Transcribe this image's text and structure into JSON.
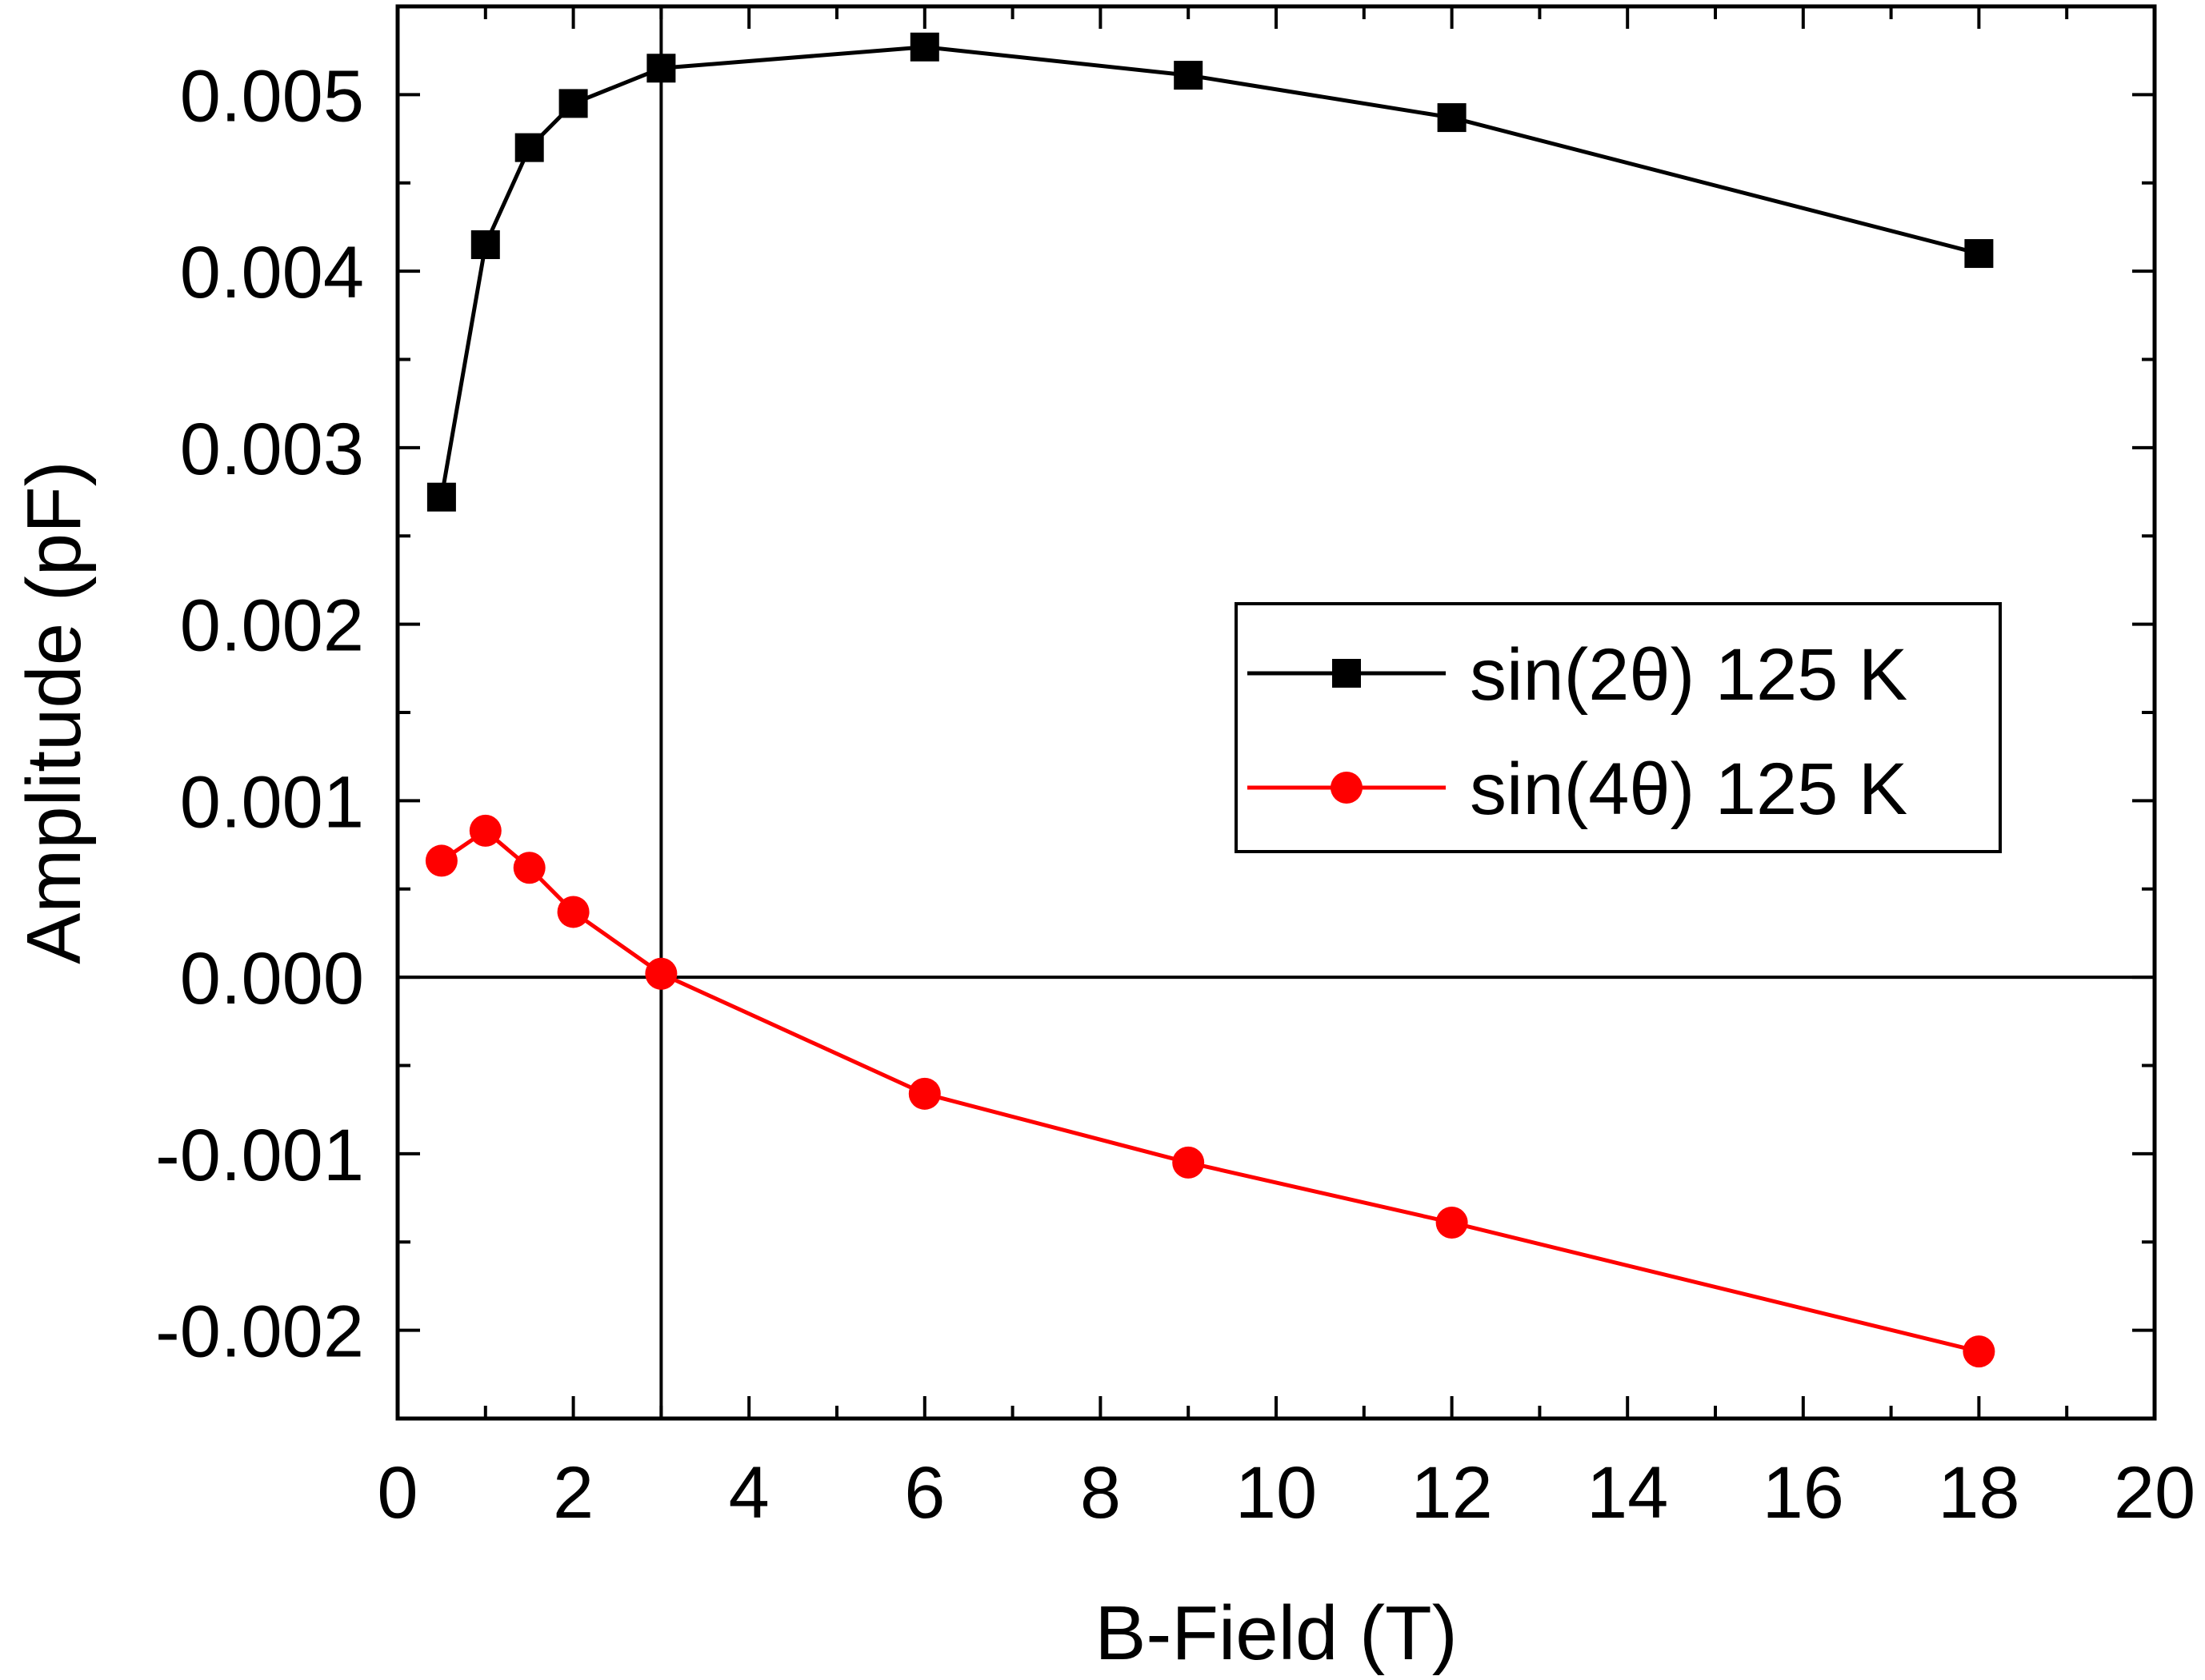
{
  "chart_data": {
    "type": "line",
    "title": "",
    "xlabel": "B-Field (T)",
    "ylabel": "Amplitude (pF)",
    "xlim": [
      0,
      20
    ],
    "ylim": [
      -0.0025,
      0.0055
    ],
    "x_ticks": [
      0,
      2,
      4,
      6,
      8,
      10,
      12,
      14,
      16,
      18,
      20
    ],
    "x_tick_labels": [
      "0",
      "2",
      "4",
      "6",
      "8",
      "10",
      "12",
      "14",
      "16",
      "18",
      "20"
    ],
    "y_ticks": [
      -0.002,
      -0.001,
      0.0,
      0.001,
      0.002,
      0.003,
      0.004,
      0.005
    ],
    "y_tick_labels": [
      "-0.002",
      "-0.001",
      "0.000",
      "0.001",
      "0.002",
      "0.003",
      "0.004",
      "0.005"
    ],
    "reference_lines": {
      "vertical_x": 3,
      "horizontal_y": 0
    },
    "grid": false,
    "legend_position": "right",
    "series": [
      {
        "name": "sin(2θ) 125 K",
        "color": "#000000",
        "marker": "square",
        "x": [
          0.5,
          1,
          1.5,
          2,
          3,
          6,
          9,
          12,
          18
        ],
        "values": [
          0.00272,
          0.00415,
          0.0047,
          0.00495,
          0.00515,
          0.00527,
          0.00511,
          0.00487,
          0.0041
        ]
      },
      {
        "name": "sin(4θ) 125 K",
        "color": "#ff0000",
        "marker": "circle",
        "x": [
          0.5,
          1,
          1.5,
          2,
          3,
          6,
          9,
          12,
          18
        ],
        "values": [
          0.00066,
          0.00083,
          0.00062,
          0.00037,
          2e-05,
          -0.00066,
          -0.00105,
          -0.00139,
          -0.00212
        ]
      }
    ]
  }
}
